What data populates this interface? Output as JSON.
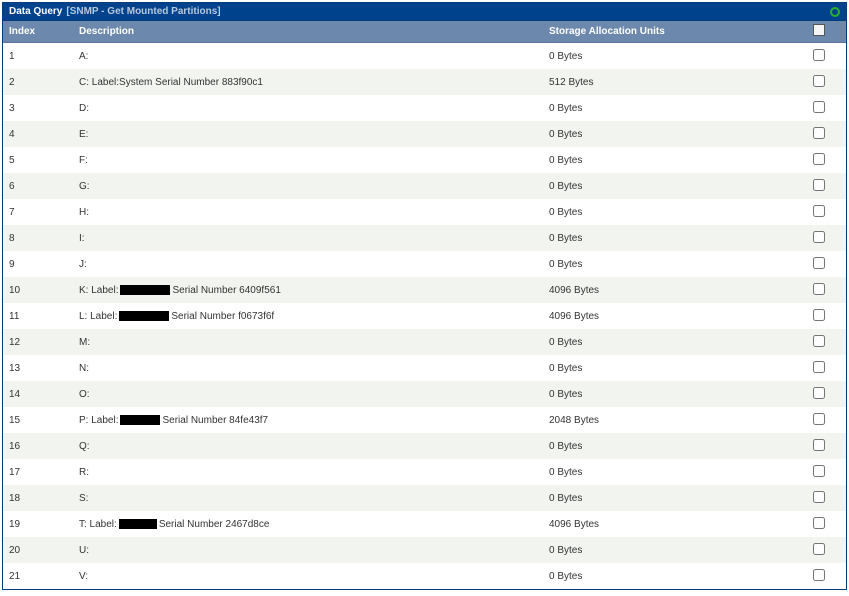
{
  "colors": {
    "title_bg": "#00438c",
    "header_bg": "#6d88ad",
    "row_even": "#ffffff",
    "row_odd": "#f2f4f0",
    "status_ring": "#2bb02b"
  },
  "title": {
    "main": "Data Query",
    "sub": "[SNMP - Get Mounted Partitions]"
  },
  "columns": {
    "index": "Index",
    "description": "Description",
    "units": "Storage Allocation Units"
  },
  "rows": [
    {
      "index": "1",
      "desc_prefix": "A:",
      "desc_suffix": "",
      "redact_w": 0,
      "units": "0 Bytes"
    },
    {
      "index": "2",
      "desc_prefix": "C: Label:System Serial Number 883f90c1",
      "desc_suffix": "",
      "redact_w": 0,
      "units": "512 Bytes"
    },
    {
      "index": "3",
      "desc_prefix": "D:",
      "desc_suffix": "",
      "redact_w": 0,
      "units": "0 Bytes"
    },
    {
      "index": "4",
      "desc_prefix": "E:",
      "desc_suffix": "",
      "redact_w": 0,
      "units": "0 Bytes"
    },
    {
      "index": "5",
      "desc_prefix": "F:",
      "desc_suffix": "",
      "redact_w": 0,
      "units": "0 Bytes"
    },
    {
      "index": "6",
      "desc_prefix": "G:",
      "desc_suffix": "",
      "redact_w": 0,
      "units": "0 Bytes"
    },
    {
      "index": "7",
      "desc_prefix": "H:",
      "desc_suffix": "",
      "redact_w": 0,
      "units": "0 Bytes"
    },
    {
      "index": "8",
      "desc_prefix": "I:",
      "desc_suffix": "",
      "redact_w": 0,
      "units": "0 Bytes"
    },
    {
      "index": "9",
      "desc_prefix": "J:",
      "desc_suffix": "",
      "redact_w": 0,
      "units": "0 Bytes"
    },
    {
      "index": "10",
      "desc_prefix": "K: Label:",
      "desc_suffix": "Serial Number 6409f561",
      "redact_w": 50,
      "units": "4096 Bytes"
    },
    {
      "index": "11",
      "desc_prefix": "L: Label:",
      "desc_suffix": "Serial Number f0673f6f",
      "redact_w": 50,
      "units": "4096 Bytes"
    },
    {
      "index": "12",
      "desc_prefix": "M:",
      "desc_suffix": "",
      "redact_w": 0,
      "units": "0 Bytes"
    },
    {
      "index": "13",
      "desc_prefix": "N:",
      "desc_suffix": "",
      "redact_w": 0,
      "units": "0 Bytes"
    },
    {
      "index": "14",
      "desc_prefix": "O:",
      "desc_suffix": "",
      "redact_w": 0,
      "units": "0 Bytes"
    },
    {
      "index": "15",
      "desc_prefix": "P: Label:",
      "desc_suffix": "Serial Number 84fe43f7",
      "redact_w": 40,
      "units": "2048 Bytes"
    },
    {
      "index": "16",
      "desc_prefix": "Q:",
      "desc_suffix": "",
      "redact_w": 0,
      "units": "0 Bytes"
    },
    {
      "index": "17",
      "desc_prefix": "R:",
      "desc_suffix": "",
      "redact_w": 0,
      "units": "0 Bytes"
    },
    {
      "index": "18",
      "desc_prefix": "S:",
      "desc_suffix": "",
      "redact_w": 0,
      "units": "0 Bytes"
    },
    {
      "index": "19",
      "desc_prefix": "T: Label:",
      "desc_suffix": "Serial Number 2467d8ce",
      "redact_w": 38,
      "units": "4096 Bytes"
    },
    {
      "index": "20",
      "desc_prefix": "U:",
      "desc_suffix": "",
      "redact_w": 0,
      "units": "0 Bytes"
    },
    {
      "index": "21",
      "desc_prefix": "V:",
      "desc_suffix": "",
      "redact_w": 0,
      "units": "0 Bytes"
    }
  ]
}
